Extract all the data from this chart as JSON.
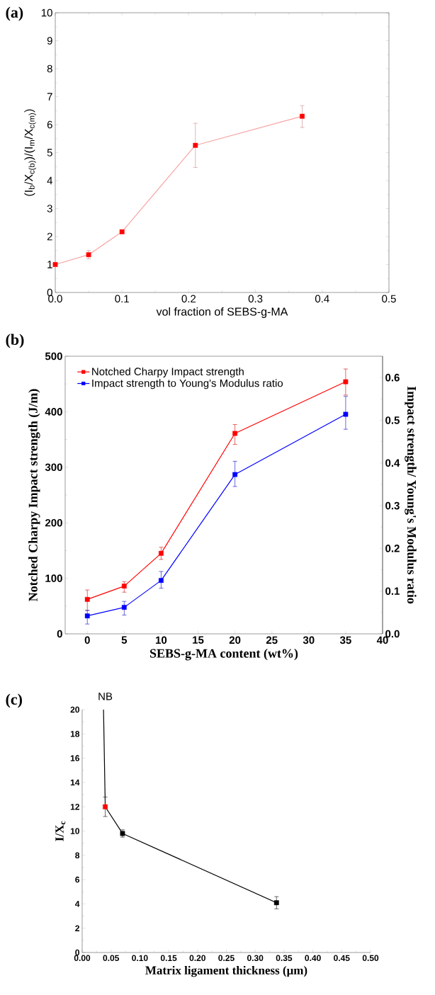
{
  "chart_data": [
    {
      "type": "line",
      "title": "(a)",
      "xlabel": "vol fraction of SEBS-g-MA",
      "ylabel": "(I$_{b}$/X$_{c(b)}$)/(I$_{m}$/X$_{c(m)}$)",
      "marker": "square",
      "xlim": [
        0,
        0.5
      ],
      "xticks": [
        {
          "value": 0,
          "label": "0.0"
        },
        0.1,
        0.2,
        0.3,
        0.4,
        0.5
      ],
      "ylim": [
        0,
        10
      ],
      "yticks": [
        0,
        1,
        2,
        3,
        4,
        5,
        6,
        7,
        8,
        9,
        10
      ],
      "series": [
        {
          "color": "#f7a3a3",
          "colors": [
            "#ff0000",
            "#ff0000",
            "#ff0000",
            "#ff0000",
            "#ff0000"
          ],
          "x": [
            0,
            0.05,
            0.1,
            0.21,
            0.37
          ],
          "values": [
            1.0,
            1.35,
            2.17,
            5.26,
            6.3
          ],
          "errors": [
            null,
            [
              1.2,
              1.5
            ],
            null,
            [
              4.47,
              6.05
            ],
            [
              5.9,
              6.68
            ]
          ]
        }
      ]
    },
    {
      "type": "line",
      "title": "(b)",
      "xlabel": "SEBS-g-MA content (wt%)",
      "ylabel": "Notched Charpy Impact strength (J/m)",
      "y2label": "Impact strength/ Young's Modulus ratio",
      "marker": "square",
      "legend": "top left",
      "xlim": [
        -3,
        40
      ],
      "xticks": [
        0,
        5,
        10,
        15,
        20,
        25,
        30,
        35,
        40
      ],
      "ylim": [
        0,
        500
      ],
      "yticks": [
        0,
        100,
        200,
        300,
        400,
        500
      ],
      "y2lim": [
        0,
        0.65
      ],
      "y2ticks": [
        {
          "value": 0,
          "label": "0.0"
        },
        0.1,
        0.2,
        0.3,
        0.4,
        0.5,
        0.6
      ],
      "x": [
        0,
        5,
        10,
        20,
        35
      ],
      "series": [
        {
          "name": "Notched Charpy Impact strength",
          "color": "#ff0000",
          "values": [
            62,
            86,
            145,
            361,
            454
          ],
          "errors": [
            [
              42,
              79
            ],
            [
              75,
              94
            ],
            [
              134,
              156
            ],
            [
              341,
              377
            ],
            [
              430,
              477
            ]
          ]
        },
        {
          "name": "Impact strength to Young's Modulus ratio",
          "color": "#0000ff",
          "axis": "y2",
          "values": [
            0.042,
            0.062,
            0.125,
            0.373,
            0.514
          ],
          "errors": [
            [
              0.023,
              0.055
            ],
            [
              0.044,
              0.076
            ],
            [
              0.107,
              0.146
            ],
            [
              0.345,
              0.404
            ],
            [
              0.479,
              0.556
            ]
          ]
        }
      ]
    },
    {
      "type": "line",
      "title": "(c)",
      "xlabel": "Matrix ligament thickness (μm)",
      "ylabel": "I/X$_{c}$",
      "marker": "square",
      "annotations": [
        "NB"
      ],
      "xlim": [
        0,
        0.5
      ],
      "xticks": [
        {
          "value": 0,
          "label": "0.00"
        },
        0.05,
        {
          "value": 0.1,
          "label": "0.10"
        },
        0.15,
        {
          "value": 0.2,
          "label": "0.20"
        },
        0.25,
        {
          "value": 0.3,
          "label": "0.30"
        },
        0.35,
        {
          "value": 0.4,
          "label": "0.40"
        },
        0.45,
        {
          "value": 0.5,
          "label": "0.50"
        }
      ],
      "ylim": [
        0,
        20
      ],
      "yticks": [
        0,
        2,
        4,
        6,
        8,
        10,
        12,
        14,
        16,
        18,
        20
      ],
      "series": [
        {
          "color": "#000000",
          "marker": "none",
          "x": [
            0.037,
            0.04
          ],
          "values": [
            20,
            12
          ]
        },
        {
          "color": "#000000",
          "colors": [
            "#ff0000",
            "#000000",
            "#000000"
          ],
          "x": [
            0.04,
            0.07,
            0.337
          ],
          "values": [
            12,
            9.8,
            4.1
          ],
          "errors": [
            [
              11.2,
              12.8
            ],
            [
              9.5,
              10.1
            ],
            [
              3.6,
              4.6
            ]
          ]
        }
      ]
    }
  ]
}
